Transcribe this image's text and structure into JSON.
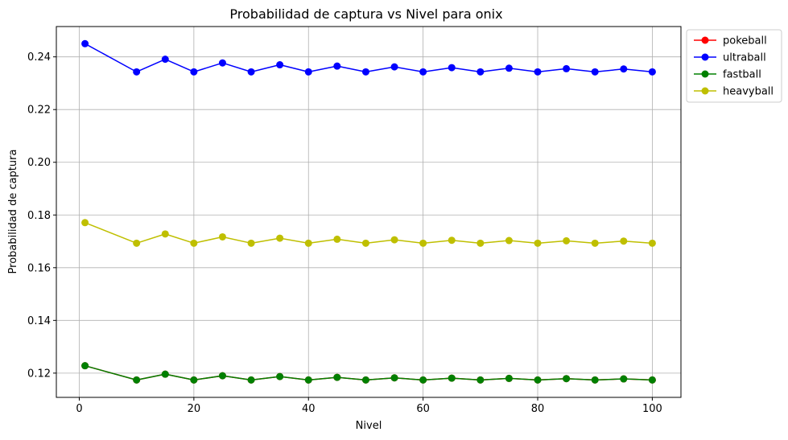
{
  "chart_data": {
    "type": "line",
    "title": "Probabilidad de captura vs Nivel para onix",
    "xlabel": "Nivel",
    "ylabel": "Probabilidad de captura",
    "xlim": [
      -4,
      105
    ],
    "ylim": [
      0.1108,
      0.2515
    ],
    "xticks": [
      0,
      20,
      40,
      60,
      80,
      100
    ],
    "yticks": [
      0.12,
      0.14,
      0.16,
      0.18,
      0.2,
      0.22,
      0.24
    ],
    "xtick_labels": [
      "0",
      "20",
      "40",
      "60",
      "80",
      "100"
    ],
    "ytick_labels": [
      "0.12",
      "0.14",
      "0.16",
      "0.18",
      "0.20",
      "0.22",
      "0.24"
    ],
    "grid": true,
    "legend": "outside-top-right",
    "x": [
      1,
      10,
      15,
      20,
      25,
      30,
      35,
      40,
      45,
      50,
      55,
      60,
      65,
      70,
      75,
      80,
      85,
      90,
      95,
      100
    ],
    "series": [
      {
        "name": "pokeball",
        "color": "#ff0000",
        "values": [
          0.1228,
          0.1174,
          0.1196,
          0.1174,
          0.119,
          0.1174,
          0.1187,
          0.1174,
          0.1184,
          0.1174,
          0.1182,
          0.1174,
          0.1181,
          0.1174,
          0.118,
          0.1174,
          0.1179,
          0.1174,
          0.1178,
          0.1174
        ]
      },
      {
        "name": "ultraball",
        "color": "#0000ff",
        "values": [
          0.245,
          0.2343,
          0.2391,
          0.2343,
          0.2377,
          0.2343,
          0.237,
          0.2343,
          0.2365,
          0.2343,
          0.2362,
          0.2343,
          0.2359,
          0.2343,
          0.2357,
          0.2343,
          0.2355,
          0.2343,
          0.2354,
          0.2343
        ]
      },
      {
        "name": "fastball",
        "color": "#008000",
        "values": [
          0.1228,
          0.1174,
          0.1196,
          0.1174,
          0.119,
          0.1174,
          0.1187,
          0.1174,
          0.1184,
          0.1174,
          0.1182,
          0.1174,
          0.1181,
          0.1174,
          0.118,
          0.1174,
          0.1179,
          0.1174,
          0.1178,
          0.1174
        ]
      },
      {
        "name": "heavyball",
        "color": "#bfbf00",
        "values": [
          0.1771,
          0.1693,
          0.1728,
          0.1693,
          0.1717,
          0.1693,
          0.1712,
          0.1693,
          0.1708,
          0.1693,
          0.1706,
          0.1693,
          0.1704,
          0.1693,
          0.1703,
          0.1693,
          0.1702,
          0.1693,
          0.1701,
          0.1693
        ]
      }
    ]
  }
}
